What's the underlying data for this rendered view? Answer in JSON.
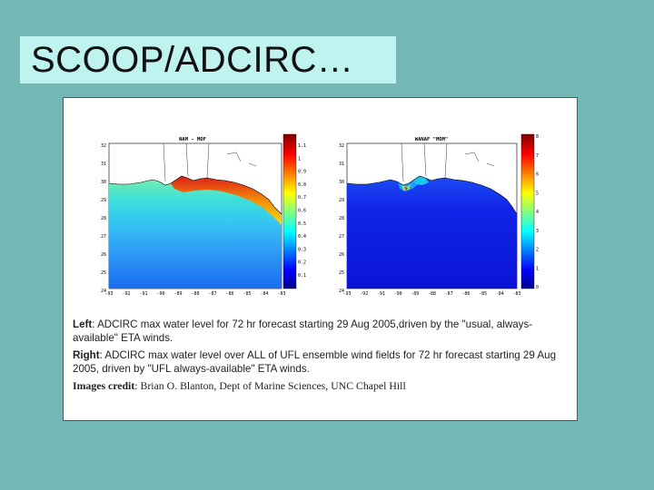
{
  "slide": {
    "title": "SCOOP/ADCIRC…"
  },
  "left_map": {
    "title": "NAM - MOF",
    "colorbar_ticks": [
      "1.1",
      "1",
      "0.9",
      "0.8",
      "0.7",
      "0.6",
      "0.5",
      "0.4",
      "0.3",
      "0.2",
      "0.1"
    ],
    "y_ticks": [
      "32",
      "31",
      "30",
      "29",
      "28",
      "27",
      "26",
      "25",
      "24"
    ],
    "x_ticks": [
      "-93",
      "-92",
      "-91",
      "-90",
      "-89",
      "-88",
      "-87",
      "-86",
      "-85",
      "-84",
      "-83"
    ]
  },
  "right_map": {
    "title": "WANAF \"MOM\"",
    "colorbar_ticks": [
      "8",
      "7",
      "6",
      "5",
      "4",
      "3",
      "2",
      "1",
      "0"
    ],
    "y_ticks": [
      "32",
      "31",
      "30",
      "29",
      "28",
      "27",
      "26",
      "25",
      "24"
    ],
    "x_ticks": [
      "-93",
      "-92",
      "-91",
      "-90",
      "-89",
      "-88",
      "-87",
      "-86",
      "-85",
      "-84",
      "-83"
    ]
  },
  "captions": {
    "left_label": "Left",
    "left_text": ": ADCIRC max water level for 72 hr forecast starting 29 Aug 2005,driven by the  \"usual, always-available\" ETA winds.",
    "right_label": "Right",
    "right_text": ": ADCIRC max water level over ALL of UFL ensemble wind fields for 72 hr forecast starting 29 Aug 2005, driven by \"UFL always-available\" ETA winds.",
    "credit_label": "Images credit",
    "credit_text": ": Brian O. Blanton, Dept of Marine Sciences, UNC Chapel Hill"
  },
  "colors": {
    "background": "#74b8b6",
    "title_box": "#bff3ef"
  }
}
